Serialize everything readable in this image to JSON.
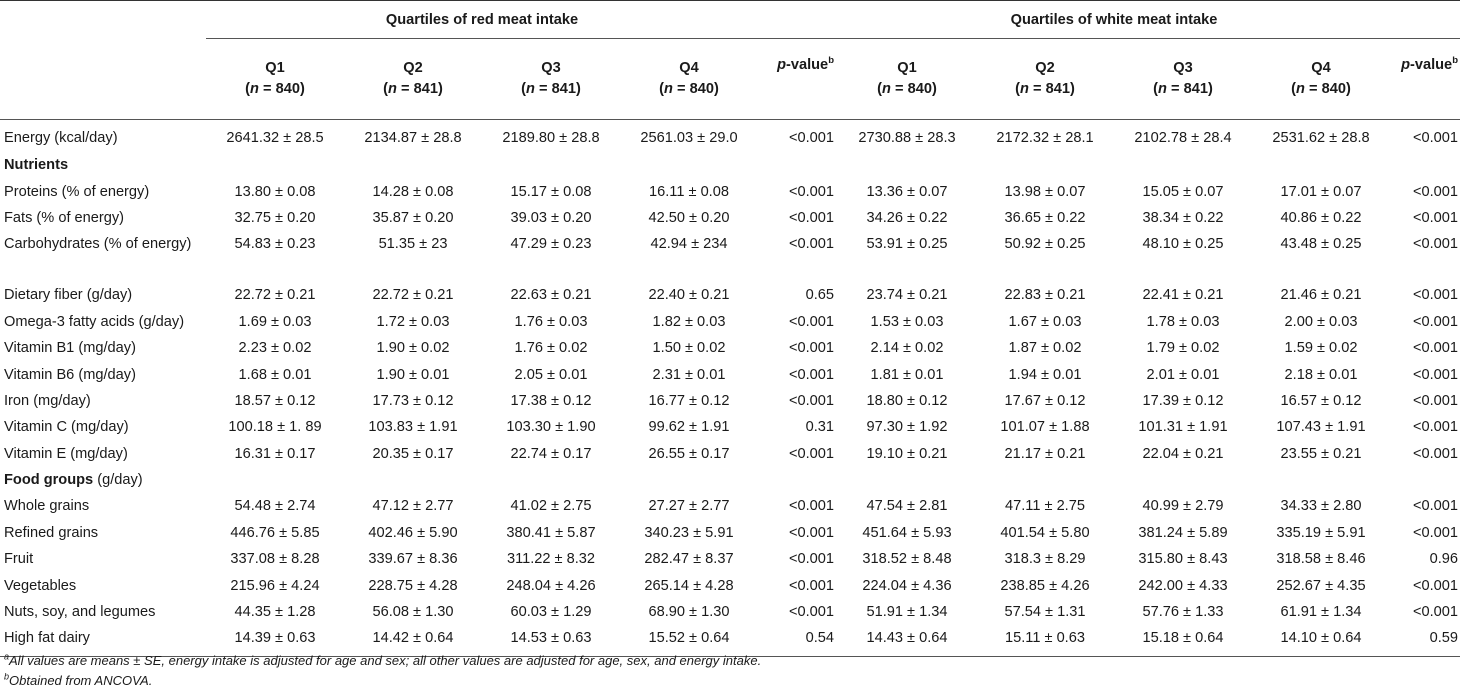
{
  "groups": {
    "red": "Quartiles of red meat intake",
    "white": "Quartiles of white meat intake"
  },
  "columns": {
    "q1": "Q1",
    "q2": "Q2",
    "q3": "Q3",
    "q4": "Q4",
    "n_letter": "n",
    "n_840": "= 840)",
    "n_841": "= 841)",
    "open": "(",
    "pvalue_italic": "p",
    "pvalue_rest": "-value",
    "pvalue_sup": "b"
  },
  "sections": {
    "nutrients": "Nutrients",
    "food_groups": "Food groups",
    "food_groups_unit": " (g/day)"
  },
  "rows": {
    "energy": {
      "label": "Energy (kcal/day)",
      "v": [
        "2641.32 ± 28.5",
        "2134.87 ± 28.8",
        "2189.80 ± 28.8",
        "2561.03 ± 29.0",
        "<0.001",
        "2730.88 ± 28.3",
        "2172.32 ± 28.1",
        "2102.78 ± 28.4",
        "2531.62 ± 28.8",
        "<0.001"
      ]
    },
    "proteins": {
      "label": "Proteins (% of energy)",
      "v": [
        "13.80 ± 0.08",
        "14.28 ± 0.08",
        "15.17 ± 0.08",
        "16.11 ± 0.08",
        "<0.001",
        "13.36 ± 0.07",
        "13.98 ± 0.07",
        "15.05 ± 0.07",
        "17.01 ± 0.07",
        "<0.001"
      ]
    },
    "fats": {
      "label": "Fats (% of energy)",
      "v": [
        "32.75 ± 0.20",
        "35.87 ± 0.20",
        "39.03 ± 0.20",
        "42.50 ± 0.20",
        "<0.001",
        "34.26 ± 0.22",
        "36.65 ± 0.22",
        "38.34 ± 0.22",
        "40.86 ± 0.22",
        "<0.001"
      ]
    },
    "carbs": {
      "label": "Carbohydrates (% of energy)",
      "v": [
        "54.83 ± 0.23",
        "51.35 ± 23",
        "47.29 ± 0.23",
        "42.94 ± 234",
        "<0.001",
        "53.91 ± 0.25",
        "50.92 ± 0.25",
        "48.10 ± 0.25",
        "43.48 ± 0.25",
        "<0.001"
      ]
    },
    "fiber": {
      "label": "Dietary fiber (g/day)",
      "v": [
        "22.72 ± 0.21",
        "22.72 ± 0.21",
        "22.63 ± 0.21",
        "22.40 ± 0.21",
        "0.65",
        "23.74 ± 0.21",
        "22.83 ± 0.21",
        "22.41 ± 0.21",
        "21.46 ± 0.21",
        "<0.001"
      ]
    },
    "omega3": {
      "label": "Omega-3 fatty acids (g/day)",
      "v": [
        "1.69 ± 0.03",
        "1.72 ± 0.03",
        "1.76 ± 0.03",
        "1.82 ± 0.03",
        "<0.001",
        "1.53 ± 0.03",
        "1.67 ± 0.03",
        "1.78 ± 0.03",
        "2.00 ± 0.03",
        "<0.001"
      ]
    },
    "b1": {
      "label": "Vitamin B1 (mg/day)",
      "v": [
        "2.23 ± 0.02",
        "1.90 ± 0.02",
        "1.76 ± 0.02",
        "1.50 ± 0.02",
        "<0.001",
        "2.14 ± 0.02",
        "1.87 ± 0.02",
        "1.79 ± 0.02",
        "1.59 ± 0.02",
        "<0.001"
      ]
    },
    "b6": {
      "label": "Vitamin B6 (mg/day)",
      "v": [
        "1.68 ± 0.01",
        "1.90 ± 0.01",
        "2.05 ± 0.01",
        "2.31 ± 0.01",
        "<0.001",
        "1.81 ± 0.01",
        "1.94 ± 0.01",
        "2.01 ± 0.01",
        "2.18 ± 0.01",
        "<0.001"
      ]
    },
    "iron": {
      "label": "Iron (mg/day)",
      "v": [
        "18.57 ± 0.12",
        "17.73 ± 0.12",
        "17.38 ± 0.12",
        "16.77 ± 0.12",
        "<0.001",
        "18.80 ± 0.12",
        "17.67 ± 0.12",
        "17.39 ± 0.12",
        "16.57 ± 0.12",
        "<0.001"
      ]
    },
    "vitc": {
      "label": "Vitamin C (mg/day)",
      "v": [
        "100.18 ± 1. 89",
        "103.83 ± 1.91",
        "103.30 ± 1.90",
        "99.62 ± 1.91",
        "0.31",
        "97.30 ± 1.92",
        "101.07 ± 1.88",
        "101.31 ± 1.91",
        "107.43 ± 1.91",
        "<0.001"
      ]
    },
    "vite": {
      "label": "Vitamin E (mg/day)",
      "v": [
        "16.31 ± 0.17",
        "20.35 ± 0.17",
        "22.74 ± 0.17",
        "26.55 ± 0.17",
        "<0.001",
        "19.10 ± 0.21",
        "21.17 ± 0.21",
        "22.04 ± 0.21",
        "23.55 ± 0.21",
        "<0.001"
      ]
    },
    "whole": {
      "label": "Whole grains",
      "v": [
        "54.48 ± 2.74",
        "47.12 ± 2.77",
        "41.02 ± 2.75",
        "27.27 ± 2.77",
        "<0.001",
        "47.54 ± 2.81",
        "47.11 ± 2.75",
        "40.99 ± 2.79",
        "34.33 ± 2.80",
        "<0.001"
      ]
    },
    "refined": {
      "label": "Refined grains",
      "v": [
        "446.76 ± 5.85",
        "402.46 ± 5.90",
        "380.41 ± 5.87",
        "340.23 ± 5.91",
        "<0.001",
        "451.64 ± 5.93",
        "401.54 ± 5.80",
        "381.24 ± 5.89",
        "335.19 ± 5.91",
        "<0.001"
      ]
    },
    "fruit": {
      "label": "Fruit",
      "v": [
        "337.08 ± 8.28",
        "339.67 ± 8.36",
        "311.22 ± 8.32",
        "282.47 ± 8.37",
        "<0.001",
        "318.52 ± 8.48",
        "318.3 ± 8.29",
        "315.80 ± 8.43",
        "318.58 ± 8.46",
        "0.96"
      ]
    },
    "veg": {
      "label": "Vegetables",
      "v": [
        "215.96 ± 4.24",
        "228.75 ± 4.28",
        "248.04 ± 4.26",
        "265.14 ± 4.28",
        "<0.001",
        "224.04 ± 4.36",
        "238.85 ± 4.26",
        "242.00 ± 4.33",
        "252.67 ± 4.35",
        "<0.001"
      ]
    },
    "nuts": {
      "label": "Nuts, soy, and legumes",
      "v": [
        "44.35 ± 1.28",
        "56.08 ± 1.30",
        "60.03 ± 1.29",
        "68.90 ± 1.30",
        "<0.001",
        "51.91 ± 1.34",
        "57.54 ± 1.31",
        "57.76 ± 1.33",
        "61.91 ± 1.34",
        "<0.001"
      ]
    },
    "dairy": {
      "label": "High fat dairy",
      "v": [
        "14.39 ± 0.63",
        "14.42 ± 0.64",
        "14.53 ± 0.63",
        "15.52 ± 0.64",
        "0.54",
        "14.43 ± 0.64",
        "15.11 ± 0.63",
        "15.18 ± 0.64",
        "14.10 ± 0.64",
        "0.59"
      ]
    }
  },
  "footnotes": {
    "a_sup": "a",
    "a_text": "All values are means ± SE, energy intake is adjusted for age and sex; all other values are adjusted for age, sex, and energy intake.",
    "b_sup": "b",
    "b_text": "Obtained from ANCOVA."
  }
}
